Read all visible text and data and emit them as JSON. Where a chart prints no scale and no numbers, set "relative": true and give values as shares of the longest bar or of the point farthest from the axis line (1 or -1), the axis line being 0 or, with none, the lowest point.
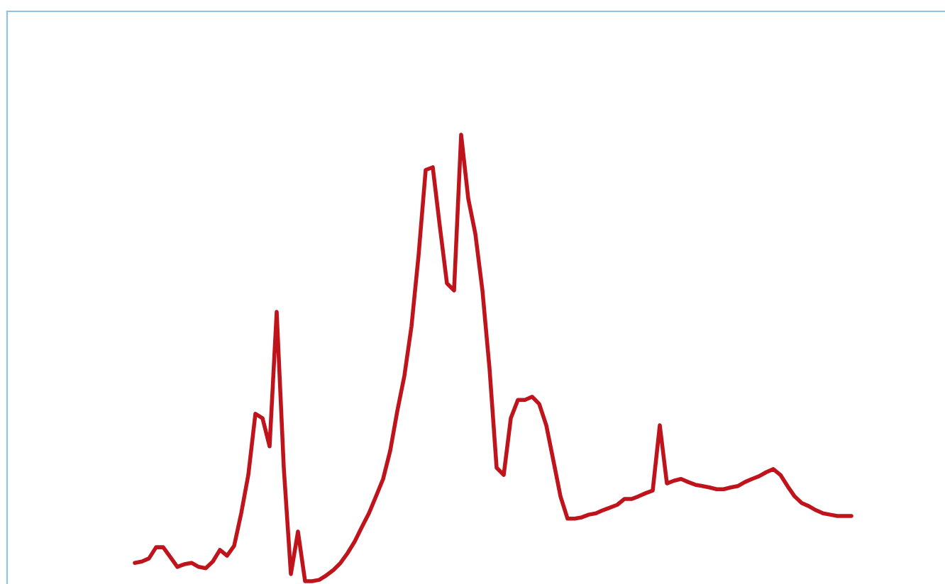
{
  "chart_data": {
    "type": "line",
    "relative": true,
    "categories": [
      null,
      null,
      null,
      null,
      null,
      null,
      null,
      null,
      null,
      null,
      null,
      null,
      null,
      null,
      null,
      null,
      null,
      null,
      null,
      null,
      null,
      null,
      null,
      null,
      null,
      null,
      null,
      null,
      null,
      null,
      null,
      null,
      null,
      null,
      null,
      null,
      null,
      null,
      null,
      null,
      null,
      null,
      null,
      null,
      null,
      null,
      null,
      null,
      null,
      null,
      null,
      null,
      null,
      null,
      null,
      null,
      null,
      null,
      null,
      null,
      null,
      null,
      null,
      null,
      null,
      null,
      null,
      null,
      null,
      null,
      null,
      null,
      null,
      null,
      null,
      null,
      null,
      null,
      null,
      null,
      null,
      null,
      null,
      null,
      null,
      null,
      null,
      null,
      null,
      null,
      null,
      null,
      null,
      null,
      null,
      null,
      null,
      null,
      null,
      null,
      null,
      null
    ],
    "series": [
      {
        "color": "#c0141c",
        "values": [
          0.041,
          0.044,
          0.051,
          0.076,
          0.076,
          0.054,
          0.032,
          0.038,
          0.041,
          0.032,
          0.029,
          0.044,
          0.07,
          0.057,
          0.079,
          0.152,
          0.238,
          0.375,
          0.365,
          0.302,
          0.603,
          0.254,
          0.016,
          0.111,
          0,
          0,
          0.003,
          0.013,
          0.025,
          0.041,
          0.063,
          0.089,
          0.121,
          0.152,
          0.19,
          0.229,
          0.292,
          0.381,
          0.46,
          0.571,
          0.73,
          0.921,
          0.927,
          0.794,
          0.667,
          0.651,
          1.0,
          0.857,
          0.778,
          0.651,
          0.476,
          0.254,
          0.238,
          0.365,
          0.406,
          0.406,
          0.413,
          0.397,
          0.349,
          0.27,
          0.19,
          0.14,
          0.14,
          0.143,
          0.149,
          0.152,
          0.159,
          0.165,
          0.171,
          0.184,
          0.184,
          0.19,
          0.197,
          0.203,
          0.349,
          0.219,
          0.225,
          0.229,
          0.222,
          0.216,
          0.213,
          0.21,
          0.206,
          0.206,
          0.21,
          0.213,
          0.222,
          0.229,
          0.235,
          0.244,
          0.251,
          0.238,
          0.213,
          0.19,
          0.175,
          0.168,
          0.159,
          0.152,
          0.149,
          0.146,
          0.146,
          0.146
        ]
      }
    ]
  }
}
